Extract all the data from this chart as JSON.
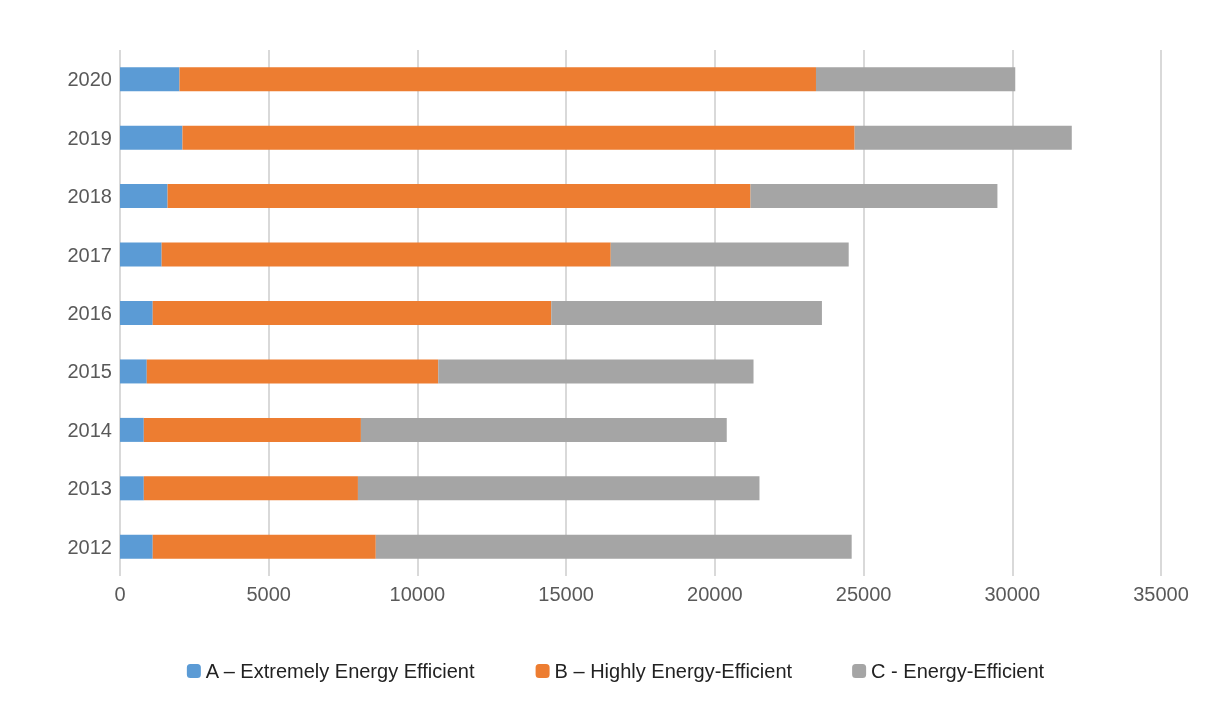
{
  "chart_data": {
    "type": "bar",
    "orientation": "horizontal",
    "stacked": true,
    "categories": [
      "2020",
      "2019",
      "2018",
      "2017",
      "2016",
      "2015",
      "2014",
      "2013",
      "2012"
    ],
    "series": [
      {
        "name": "A – Extremely Energy Efficient",
        "color": "#5b9bd5",
        "values": [
          2000,
          2100,
          1600,
          1400,
          1100,
          900,
          800,
          800,
          1100
        ]
      },
      {
        "name": "B – Highly Energy-Efficient",
        "color": "#ed7d31",
        "values": [
          21400,
          22600,
          19600,
          15100,
          13400,
          9800,
          7300,
          7200,
          7500
        ]
      },
      {
        "name": "C - Energy-Efficient",
        "color": "#a5a5a5",
        "values": [
          6700,
          7300,
          8300,
          8000,
          9100,
          10600,
          12300,
          13500,
          16000
        ]
      }
    ],
    "xlim": [
      0,
      35000
    ],
    "xticks": [
      0,
      5000,
      10000,
      15000,
      20000,
      25000,
      30000,
      35000
    ],
    "grid": "x",
    "legend": "bottom"
  }
}
